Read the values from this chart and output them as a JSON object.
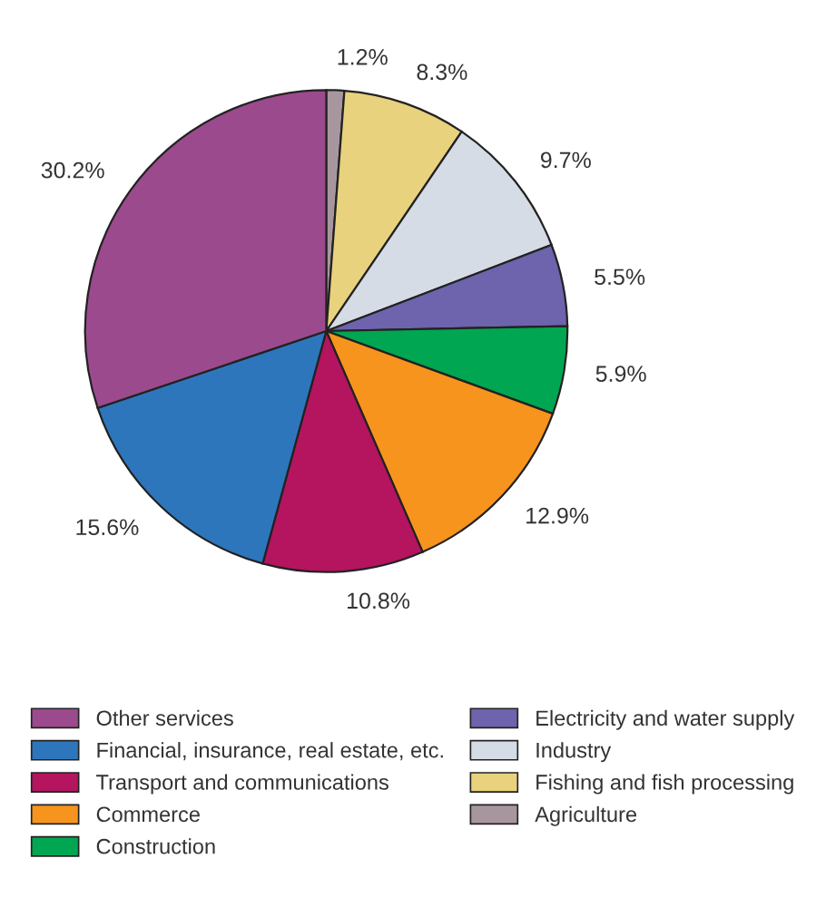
{
  "chart_data": {
    "type": "pie",
    "categories": [
      "Agriculture",
      "Fishing and fish processing",
      "Industry",
      "Electricity and water supply",
      "Construction",
      "Commerce",
      "Transport and communications",
      "Financial, insurance, real estate, etc.",
      "Other services"
    ],
    "values": [
      1.2,
      8.3,
      9.7,
      5.5,
      5.9,
      12.9,
      10.8,
      15.6,
      30.2
    ],
    "value_labels": [
      "1.2%",
      "8.3%",
      "9.7%",
      "5.5%",
      "5.9%",
      "12.9%",
      "10.8%",
      "15.6%",
      "30.2%"
    ],
    "colors": [
      "#a8969e",
      "#e8d27e",
      "#d6dce6",
      "#6e63ad",
      "#00a651",
      "#f7941d",
      "#b5145f",
      "#2e76bc",
      "#9c4a8e"
    ],
    "legend": "bottom"
  }
}
